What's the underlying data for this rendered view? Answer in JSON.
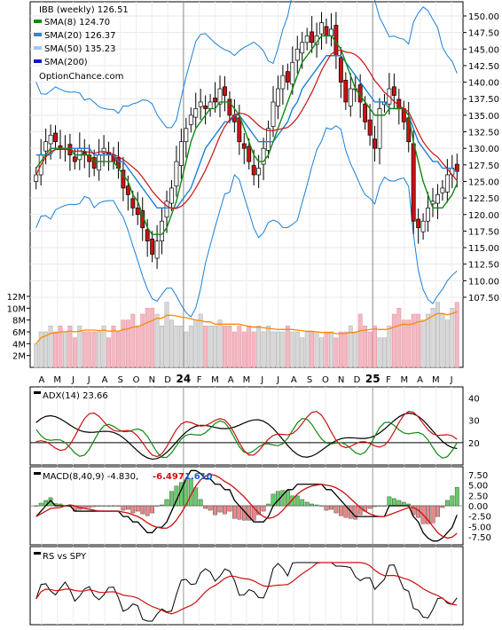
{
  "legend": {
    "title": "IBB (weekly) 126.51",
    "items": [
      {
        "label": "SMA(8) 124.70",
        "color": "#118811"
      },
      {
        "label": "SMA(20) 126.37",
        "color": "#2a88d8"
      },
      {
        "label": "SMA(50) 135.23",
        "color": "#a8c8e8"
      },
      {
        "label": "SMA(200)",
        "color": "#1010cc"
      }
    ],
    "source": "OptionChance.com"
  },
  "price_axis": {
    "labels": [
      "150.00",
      "147.50",
      "145.00",
      "142.50",
      "140.00",
      "137.50",
      "135.00",
      "132.50",
      "130.00",
      "127.50",
      "125.00",
      "122.50",
      "120.00",
      "117.50",
      "115.00",
      "112.50",
      "110.00",
      "107.50"
    ],
    "ylim": [
      106.8,
      151.2
    ]
  },
  "volume_axis": {
    "labels": [
      "12M",
      "10M",
      "8M",
      "6M",
      "4M",
      "2M"
    ],
    "ylim": [
      0,
      13
    ]
  },
  "time_axis": {
    "labels": [
      "A",
      "M",
      "J",
      "J",
      "A",
      "S",
      "O",
      "N",
      "D",
      "24",
      "F",
      "M",
      "A",
      "M",
      "J",
      "J",
      "A",
      "S",
      "O",
      "N",
      "D",
      "25",
      "F",
      "M",
      "A",
      "M",
      "J"
    ]
  },
  "adx_panel": {
    "label": "ADX(14) 23.66",
    "ticks": [
      "40",
      "30",
      "20"
    ]
  },
  "macd_panel": {
    "label": "MACD(8,40,9) -4.830,",
    "v2": "-6.497,",
    "v3": "1.610",
    "ticks": [
      "7.50",
      "5.00",
      "2.50",
      "0.00",
      "-2.50",
      "-5.00",
      "-7.50"
    ]
  },
  "rs_panel": {
    "label": "RS vs SPY"
  },
  "colors": {
    "up": "#ffffff",
    "down": "#cc1111",
    "up_vol": "#d8d8d8",
    "down_vol": "#f4b8c2",
    "sma8": "#118811",
    "sma20": "#1a80d8",
    "sma50": "#e4e400",
    "sma50_after": "#cc1111",
    "orange": "#ff8800",
    "adx": "#000000",
    "plus_di": "#118811",
    "minus_di": "#cc1111",
    "macd_line": "#000000",
    "signal": "#cc1111",
    "hist_pos": "#66cc66",
    "hist_neg": "#e88888"
  },
  "chart_data": [
    {
      "type": "candlestick",
      "x_labels": [
        "A",
        "M",
        "J",
        "J",
        "A",
        "S",
        "O",
        "N",
        "D",
        "24",
        "F",
        "M",
        "A",
        "M",
        "J",
        "J",
        "A",
        "S",
        "O",
        "N",
        "D",
        "25",
        "F",
        "M",
        "A",
        "M",
        "J"
      ],
      "ylim": [
        106.8,
        151.2
      ],
      "close": [
        126,
        129,
        131,
        132,
        131,
        130,
        130,
        129,
        128,
        130,
        129,
        128,
        127,
        129,
        130,
        129,
        128,
        127,
        124,
        123,
        121,
        120,
        118,
        116,
        114,
        116,
        119,
        122,
        124,
        128,
        131,
        133,
        135,
        136,
        137,
        136,
        137,
        137,
        139,
        138,
        135,
        134,
        131,
        130,
        128,
        126,
        127,
        130,
        133,
        137,
        139,
        141,
        140,
        143,
        145,
        146,
        147,
        146,
        147,
        149,
        147,
        148,
        144,
        140,
        137,
        139,
        139,
        137,
        134,
        132,
        130,
        136,
        137,
        139,
        138,
        136,
        134,
        131,
        119,
        118,
        119,
        121,
        122,
        123,
        124,
        126,
        127,
        126.5
      ],
      "sma8": [
        127,
        128,
        129,
        130,
        130,
        130,
        130,
        130,
        129,
        129,
        129,
        129,
        128,
        128,
        128,
        128,
        128,
        127,
        126,
        125,
        123,
        122,
        120,
        118,
        117,
        117,
        117,
        118,
        120,
        122,
        125,
        128,
        131,
        133,
        134,
        135,
        136,
        136,
        137,
        137,
        137,
        136,
        135,
        133,
        131,
        129,
        128,
        128,
        129,
        131,
        133,
        135,
        137,
        139,
        141,
        143,
        144,
        145,
        146,
        147,
        147,
        147,
        146,
        145,
        143,
        141,
        139,
        138,
        137,
        136,
        135,
        135,
        135,
        136,
        136,
        136,
        136,
        135,
        131,
        128,
        125,
        123,
        121,
        121,
        121,
        122,
        123,
        124.7
      ],
      "sma20": [
        129,
        129,
        129,
        129,
        130,
        130,
        130,
        130,
        130,
        130,
        130,
        130,
        129,
        129,
        129,
        129,
        129,
        128,
        128,
        127,
        126,
        125,
        124,
        123,
        122,
        121,
        121,
        121,
        121,
        121,
        122,
        123,
        124,
        126,
        128,
        130,
        131,
        132,
        133,
        134,
        134,
        135,
        135,
        134,
        133,
        132,
        131,
        131,
        131,
        131,
        132,
        133,
        134,
        136,
        137,
        139,
        140,
        141,
        142,
        143,
        144,
        144,
        144,
        144,
        143,
        142,
        141,
        140,
        139,
        138,
        137,
        137,
        137,
        136,
        136,
        136,
        136,
        135,
        133,
        131,
        130,
        129,
        128,
        128,
        127,
        127,
        127,
        126.4
      ]
    },
    {
      "type": "bar",
      "title": "Volume",
      "ylim": [
        0,
        13
      ],
      "values": [
        4,
        6,
        6,
        7,
        6,
        7,
        6,
        7,
        5,
        7,
        6,
        6,
        6,
        6,
        7,
        5,
        7,
        6,
        8,
        8,
        9,
        7,
        9,
        10,
        10,
        9,
        7,
        11,
        8,
        7,
        7,
        6,
        7,
        8,
        9,
        7,
        7,
        7,
        8,
        7,
        7,
        6,
        7,
        6,
        7,
        6,
        7,
        6,
        7,
        6,
        6,
        6,
        7,
        6,
        6,
        5,
        6,
        6,
        6,
        5,
        6,
        6,
        5,
        6,
        6,
        7,
        6,
        9,
        7,
        6,
        7,
        5,
        5,
        7,
        9,
        10,
        8,
        8,
        9,
        9,
        8,
        9,
        10,
        11,
        9,
        8,
        10,
        11
      ]
    },
    {
      "type": "line",
      "title": "ADX(14)",
      "ylim": [
        10,
        45
      ]
    },
    {
      "type": "line",
      "title": "MACD(8,40,9)",
      "ylim": [
        -9,
        9
      ]
    },
    {
      "type": "line",
      "title": "RS vs SPY"
    }
  ]
}
